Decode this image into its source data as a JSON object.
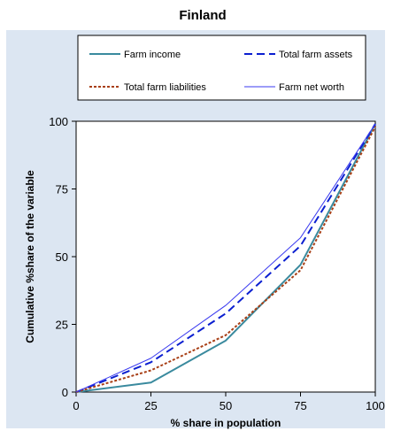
{
  "chart_data": {
    "type": "line",
    "title": "Finland",
    "xlabel": "% share in population",
    "ylabel": "Cumulative %share of the variable",
    "x": [
      0,
      25,
      50,
      75,
      100
    ],
    "xlim": [
      0,
      100
    ],
    "ylim": [
      0,
      100
    ],
    "xticks": [
      0,
      25,
      50,
      75,
      100
    ],
    "yticks": [
      0,
      25,
      50,
      75,
      100
    ],
    "grid": false,
    "legend_position": "top",
    "series": [
      {
        "name": "Farm income",
        "values": [
          0,
          3.5,
          19,
          47,
          99
        ],
        "color": "#3a8a9e",
        "style": "solid"
      },
      {
        "name": "Total farm assets",
        "values": [
          0,
          11,
          29,
          54,
          99
        ],
        "color": "#0b1fd0",
        "style": "dashed"
      },
      {
        "name": "Total farm liabilities",
        "values": [
          0,
          8,
          21,
          45,
          98
        ],
        "color": "#a83f16",
        "style": "dotted"
      },
      {
        "name": "Farm net worth",
        "values": [
          0,
          12.5,
          32,
          57,
          99
        ],
        "color": "#3a3af0",
        "style": "thin"
      }
    ],
    "colors": {
      "background": "#dce6f2",
      "plot_background": "#ffffff"
    }
  }
}
